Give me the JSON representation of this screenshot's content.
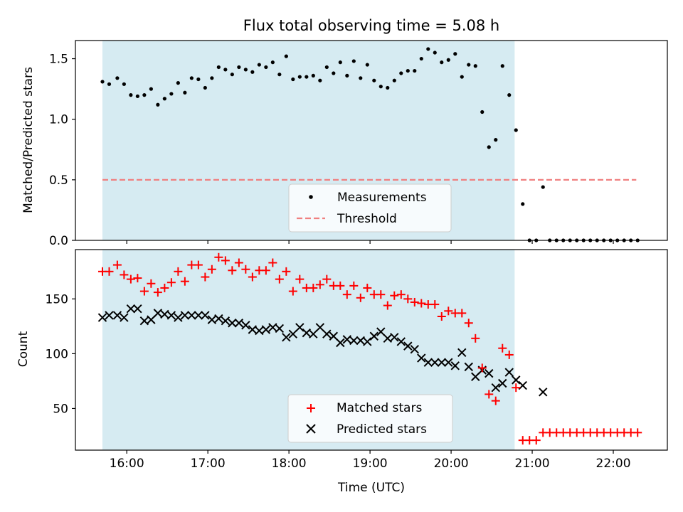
{
  "chart_data": [
    {
      "type": "scatter",
      "title": "Flux total observing time = 5.08 h",
      "xlabel": "",
      "ylabel": "Matched/Predicted stars",
      "ylim": [
        0,
        1.65
      ],
      "xlim": [
        "15:22",
        "22:40"
      ],
      "yticks": [
        0.0,
        0.5,
        1.0,
        1.5
      ],
      "ytick_labels": [
        "0.0",
        "0.5",
        "1.0",
        "1.5"
      ],
      "xtick_labels": [
        "16:00",
        "17:00",
        "18:00",
        "19:00",
        "20:00",
        "21:00",
        "22:00"
      ],
      "observing_window": [
        "15:42",
        "20:47"
      ],
      "legend": {
        "position": "lower center",
        "entries": [
          "Measurements",
          "Threshold"
        ]
      },
      "colors": {
        "window": "#add8e6",
        "measurements": "#000000",
        "threshold": "#f08080"
      },
      "threshold": {
        "name": "Threshold",
        "value": 0.5,
        "x_range": [
          "15:42",
          "22:17"
        ]
      },
      "series": [
        {
          "name": "Measurements",
          "marker": "dot",
          "x": [
            "15:42",
            "15:47",
            "15:53",
            "15:58",
            "16:03",
            "16:08",
            "16:13",
            "16:18",
            "16:23",
            "16:28",
            "16:33",
            "16:38",
            "16:43",
            "16:48",
            "16:53",
            "16:58",
            "17:03",
            "17:08",
            "17:13",
            "17:18",
            "17:23",
            "17:28",
            "17:33",
            "17:38",
            "17:43",
            "17:48",
            "17:53",
            "17:58",
            "18:03",
            "18:08",
            "18:13",
            "18:18",
            "18:23",
            "18:28",
            "18:33",
            "18:38",
            "18:43",
            "18:48",
            "18:53",
            "18:58",
            "19:03",
            "19:08",
            "19:13",
            "19:18",
            "19:23",
            "19:28",
            "19:33",
            "19:38",
            "19:43",
            "19:48",
            "19:53",
            "19:58",
            "20:03",
            "20:08",
            "20:13",
            "20:18",
            "20:23",
            "20:28",
            "20:33",
            "20:38",
            "20:43",
            "20:48",
            "20:53",
            "20:58",
            "21:03",
            "21:08",
            "21:13",
            "21:18",
            "21:23",
            "21:28",
            "21:33",
            "21:38",
            "21:43",
            "21:48",
            "21:53",
            "21:58",
            "22:03",
            "22:08",
            "22:13",
            "22:18"
          ],
          "y": [
            1.31,
            1.29,
            1.34,
            1.29,
            1.2,
            1.19,
            1.2,
            1.25,
            1.12,
            1.17,
            1.21,
            1.3,
            1.22,
            1.34,
            1.33,
            1.26,
            1.34,
            1.43,
            1.41,
            1.37,
            1.43,
            1.41,
            1.39,
            1.45,
            1.43,
            1.47,
            1.37,
            1.52,
            1.33,
            1.35,
            1.35,
            1.36,
            1.32,
            1.43,
            1.38,
            1.47,
            1.36,
            1.48,
            1.34,
            1.45,
            1.32,
            1.27,
            1.26,
            1.32,
            1.38,
            1.4,
            1.4,
            1.5,
            1.58,
            1.55,
            1.47,
            1.49,
            1.54,
            1.35,
            1.45,
            1.44,
            1.06,
            0.77,
            0.83,
            1.44,
            1.2,
            0.91,
            0.3,
            0.0,
            0.0,
            0.44,
            0.0,
            0.0,
            0.0,
            0.0,
            0.0,
            0.0,
            0.0,
            0.0,
            0.0,
            0.0,
            0.0,
            0.0,
            0.0,
            0.0
          ]
        }
      ]
    },
    {
      "type": "scatter",
      "title": "",
      "xlabel": "Time (UTC)",
      "ylabel": "Count",
      "ylim": [
        12,
        195
      ],
      "xlim": [
        "15:22",
        "22:40"
      ],
      "yticks": [
        50,
        100,
        150
      ],
      "ytick_labels": [
        "50",
        "100",
        "150"
      ],
      "xtick_labels": [
        "16:00",
        "17:00",
        "18:00",
        "19:00",
        "20:00",
        "21:00",
        "22:00"
      ],
      "observing_window": [
        "15:42",
        "20:47"
      ],
      "legend": {
        "position": "lower center",
        "entries": [
          "Matched stars",
          "Predicted stars"
        ]
      },
      "colors": {
        "window": "#add8e6",
        "matched": "#ff0000",
        "predicted": "#000000"
      },
      "series": [
        {
          "name": "Matched stars",
          "marker": "plus",
          "x": [
            "15:42",
            "15:47",
            "15:53",
            "15:58",
            "16:03",
            "16:08",
            "16:13",
            "16:18",
            "16:23",
            "16:28",
            "16:33",
            "16:38",
            "16:43",
            "16:48",
            "16:53",
            "16:58",
            "17:03",
            "17:08",
            "17:13",
            "17:18",
            "17:23",
            "17:28",
            "17:33",
            "17:38",
            "17:43",
            "17:48",
            "17:53",
            "17:58",
            "18:03",
            "18:08",
            "18:13",
            "18:18",
            "18:23",
            "18:28",
            "18:33",
            "18:38",
            "18:43",
            "18:48",
            "18:53",
            "18:58",
            "19:03",
            "19:08",
            "19:13",
            "19:18",
            "19:23",
            "19:28",
            "19:33",
            "19:38",
            "19:43",
            "19:48",
            "19:53",
            "19:58",
            "20:03",
            "20:08",
            "20:13",
            "20:18",
            "20:23",
            "20:28",
            "20:33",
            "20:38",
            "20:43",
            "20:48",
            "20:53",
            "20:58",
            "21:03",
            "21:08",
            "21:13",
            "21:18",
            "21:23",
            "21:28",
            "21:33",
            "21:38",
            "21:43",
            "21:48",
            "21:53",
            "21:58",
            "22:03",
            "22:08",
            "22:13",
            "22:18"
          ],
          "y": [
            175,
            175,
            181,
            172,
            168,
            169,
            157,
            164,
            156,
            160,
            165,
            175,
            166,
            181,
            181,
            170,
            177,
            188,
            185,
            176,
            183,
            177,
            170,
            176,
            176,
            183,
            168,
            175,
            157,
            168,
            160,
            160,
            163,
            168,
            162,
            162,
            154,
            162,
            151,
            160,
            154,
            154,
            144,
            153,
            154,
            150,
            147,
            146,
            145,
            145,
            134,
            139,
            137,
            137,
            128,
            114,
            87,
            63,
            57,
            105,
            99,
            69,
            21,
            21,
            21,
            28,
            28,
            28,
            28,
            28,
            28,
            28,
            28,
            28,
            28,
            28,
            28,
            28,
            28,
            28
          ]
        },
        {
          "name": "Predicted stars",
          "marker": "x",
          "x": [
            "15:42",
            "15:47",
            "15:53",
            "15:58",
            "16:03",
            "16:08",
            "16:13",
            "16:18",
            "16:23",
            "16:28",
            "16:33",
            "16:38",
            "16:43",
            "16:48",
            "16:53",
            "16:58",
            "17:03",
            "17:08",
            "17:13",
            "17:18",
            "17:23",
            "17:28",
            "17:33",
            "17:38",
            "17:43",
            "17:48",
            "17:53",
            "17:58",
            "18:03",
            "18:08",
            "18:13",
            "18:18",
            "18:23",
            "18:28",
            "18:33",
            "18:38",
            "18:43",
            "18:48",
            "18:53",
            "18:58",
            "19:03",
            "19:08",
            "19:13",
            "19:18",
            "19:23",
            "19:28",
            "19:33",
            "19:38",
            "19:43",
            "19:48",
            "19:53",
            "19:58",
            "20:03",
            "20:08",
            "20:13",
            "20:18",
            "20:23",
            "20:28",
            "20:33",
            "20:38",
            "20:43",
            "20:48",
            "20:53",
            "21:08"
          ],
          "y": [
            133,
            135,
            135,
            133,
            141,
            141,
            130,
            131,
            137,
            136,
            135,
            133,
            135,
            135,
            135,
            135,
            131,
            132,
            130,
            128,
            128,
            126,
            122,
            121,
            122,
            124,
            123,
            115,
            118,
            124,
            119,
            118,
            124,
            118,
            116,
            110,
            113,
            112,
            112,
            111,
            116,
            120,
            114,
            115,
            111,
            107,
            104,
            96,
            92,
            92,
            92,
            92,
            89,
            101,
            88,
            79,
            85,
            82,
            69,
            73,
            83,
            76,
            71,
            65
          ]
        }
      ]
    }
  ]
}
